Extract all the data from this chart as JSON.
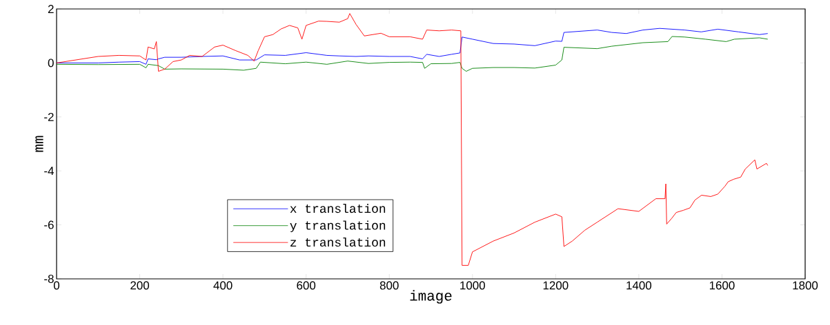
{
  "chart_data": {
    "type": "line",
    "xlabel": "image",
    "ylabel": "mm",
    "xlim": [
      0,
      1800
    ],
    "ylim": [
      -8,
      2
    ],
    "xticks": [
      0,
      200,
      400,
      600,
      800,
      1000,
      1200,
      1400,
      1600,
      1800
    ],
    "yticks": [
      -8,
      -6,
      -4,
      -2,
      0,
      2
    ],
    "grid": false,
    "legend": "bottom",
    "marker": "none",
    "line_style": "solid",
    "series": [
      {
        "name": "x translation",
        "color": "#0000ff",
        "x": [
          0,
          100,
          150,
          200,
          215,
          220,
          240,
          245,
          260,
          300,
          350,
          400,
          440,
          480,
          500,
          550,
          600,
          650,
          680,
          720,
          750,
          800,
          850,
          880,
          890,
          920,
          950,
          970,
          975,
          1000,
          1050,
          1100,
          1150,
          1200,
          1215,
          1220,
          1300,
          1335,
          1370,
          1410,
          1450,
          1510,
          1550,
          1590,
          1640,
          1690,
          1710
        ],
        "values": [
          0,
          0,
          0.03,
          0.05,
          -0.05,
          0.15,
          0.12,
          0.15,
          0.21,
          0.21,
          0.24,
          0.26,
          0.11,
          0.11,
          0.3,
          0.28,
          0.38,
          0.28,
          0.26,
          0.24,
          0.26,
          0.24,
          0.24,
          0.15,
          0.32,
          0.24,
          0.32,
          0.37,
          0.96,
          0.88,
          0.72,
          0.7,
          0.64,
          0.81,
          0.8,
          1.13,
          1.22,
          1.13,
          1.09,
          1.22,
          1.28,
          1.22,
          1.15,
          1.25,
          1.15,
          1.05,
          1.09
        ]
      },
      {
        "name": "y translation",
        "color": "#008000",
        "x": [
          0,
          100,
          200,
          215,
          220,
          245,
          260,
          300,
          400,
          450,
          480,
          490,
          550,
          600,
          650,
          700,
          750,
          800,
          850,
          880,
          885,
          900,
          950,
          970,
          975,
          985,
          1000,
          1050,
          1100,
          1150,
          1200,
          1215,
          1220,
          1300,
          1335,
          1410,
          1470,
          1480,
          1510,
          1560,
          1610,
          1630,
          1690,
          1710
        ],
        "values": [
          -0.05,
          -0.06,
          -0.05,
          -0.18,
          -0.05,
          -0.1,
          -0.23,
          -0.22,
          -0.23,
          -0.27,
          -0.2,
          0.03,
          -0.03,
          0.03,
          -0.05,
          0.07,
          -0.02,
          0.02,
          0.03,
          0.02,
          -0.2,
          -0.03,
          -0.02,
          0.02,
          -0.2,
          -0.31,
          -0.2,
          -0.17,
          -0.17,
          -0.19,
          -0.08,
          0.11,
          0.58,
          0.53,
          0.62,
          0.75,
          0.79,
          0.98,
          0.96,
          0.88,
          0.79,
          0.88,
          0.93,
          0.88
        ]
      },
      {
        "name": "z translation",
        "color": "#ff0000",
        "x": [
          0,
          100,
          150,
          200,
          215,
          220,
          235,
          240,
          245,
          260,
          280,
          300,
          320,
          350,
          380,
          400,
          430,
          460,
          475,
          485,
          500,
          520,
          540,
          560,
          580,
          590,
          600,
          630,
          650,
          680,
          700,
          705,
          720,
          740,
          780,
          800,
          830,
          850,
          880,
          890,
          920,
          950,
          972,
          975,
          990,
          1000,
          1050,
          1100,
          1150,
          1200,
          1215,
          1220,
          1240,
          1270,
          1300,
          1350,
          1400,
          1441,
          1463,
          1465,
          1467,
          1479,
          1490,
          1507,
          1523,
          1535,
          1551,
          1573,
          1590,
          1607,
          1615,
          1628,
          1645,
          1656,
          1679,
          1684,
          1707,
          1710
        ],
        "values": [
          0,
          0.24,
          0.28,
          0.26,
          0.11,
          0.59,
          0.52,
          0.79,
          -0.31,
          -0.23,
          0.05,
          0.11,
          0.28,
          0.24,
          0.59,
          0.66,
          0.46,
          0.28,
          0.07,
          0.46,
          0.97,
          1.05,
          1.26,
          1.39,
          1.3,
          0.88,
          1.39,
          1.55,
          1.54,
          1.51,
          1.64,
          1.83,
          1.43,
          1.0,
          1.1,
          0.97,
          0.97,
          0.97,
          0.88,
          1.22,
          1.19,
          1.22,
          1.19,
          -7.5,
          -7.5,
          -7.0,
          -6.6,
          -6.3,
          -5.9,
          -5.6,
          -5.7,
          -6.8,
          -6.6,
          -6.2,
          -5.9,
          -5.4,
          -5.5,
          -5.03,
          -5.03,
          -4.48,
          -5.97,
          -5.76,
          -5.54,
          -5.46,
          -5.37,
          -5.08,
          -4.9,
          -4.95,
          -4.86,
          -4.57,
          -4.4,
          -4.31,
          -4.23,
          -3.93,
          -3.59,
          -3.93,
          -3.72,
          -3.8
        ]
      }
    ]
  }
}
